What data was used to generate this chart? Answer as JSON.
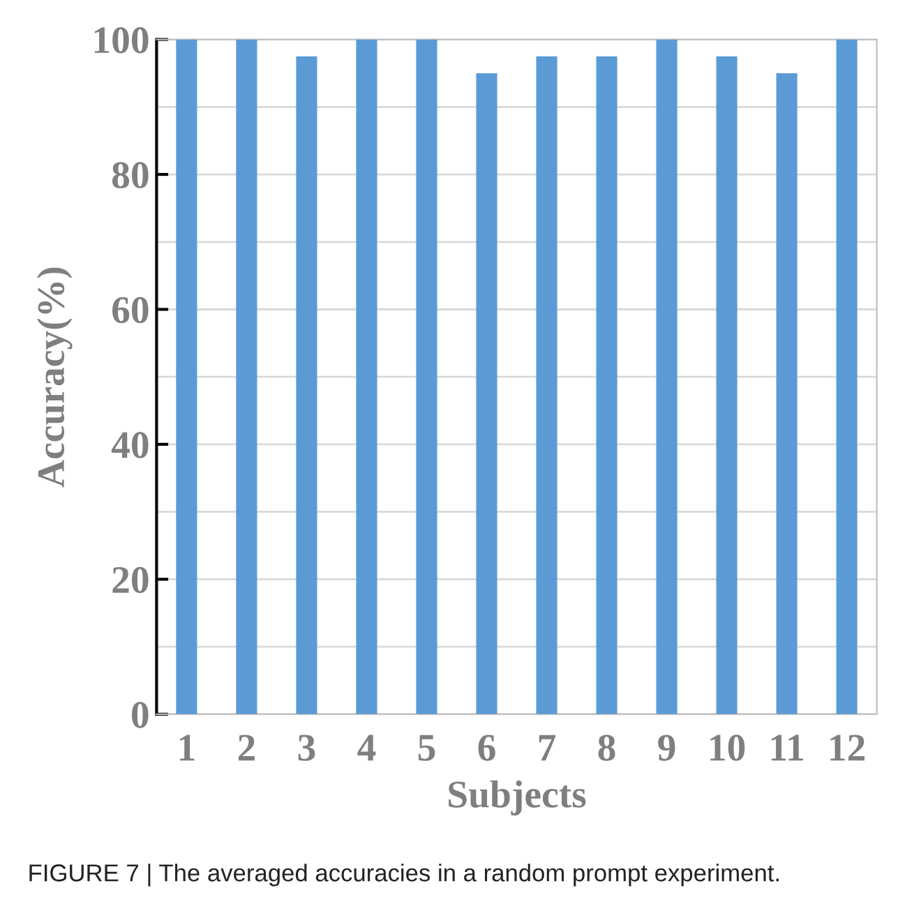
{
  "chart_data": {
    "type": "bar",
    "xlabel": "Subjects",
    "ylabel": "Accuracy(%)",
    "categories": [
      "1",
      "2",
      "3",
      "4",
      "5",
      "6",
      "7",
      "8",
      "9",
      "10",
      "11",
      "12"
    ],
    "values": [
      100,
      100,
      97.5,
      100,
      100,
      95,
      97.5,
      97.5,
      100,
      97.5,
      95,
      100
    ],
    "color": "#5b9bd5",
    "ylim": [
      0,
      100
    ],
    "yticks": [
      0,
      {
        "value": 10,
        "label": null
      },
      20,
      {
        "value": 30,
        "label": null
      },
      40,
      {
        "value": 50,
        "label": null
      },
      60,
      {
        "value": 70,
        "label": null
      },
      80,
      {
        "value": 90,
        "label": null
      },
      100
    ],
    "grid": "y",
    "annotations": [
      "FIGURE 7 | The averaged accuracies in a random prompt experiment."
    ]
  }
}
